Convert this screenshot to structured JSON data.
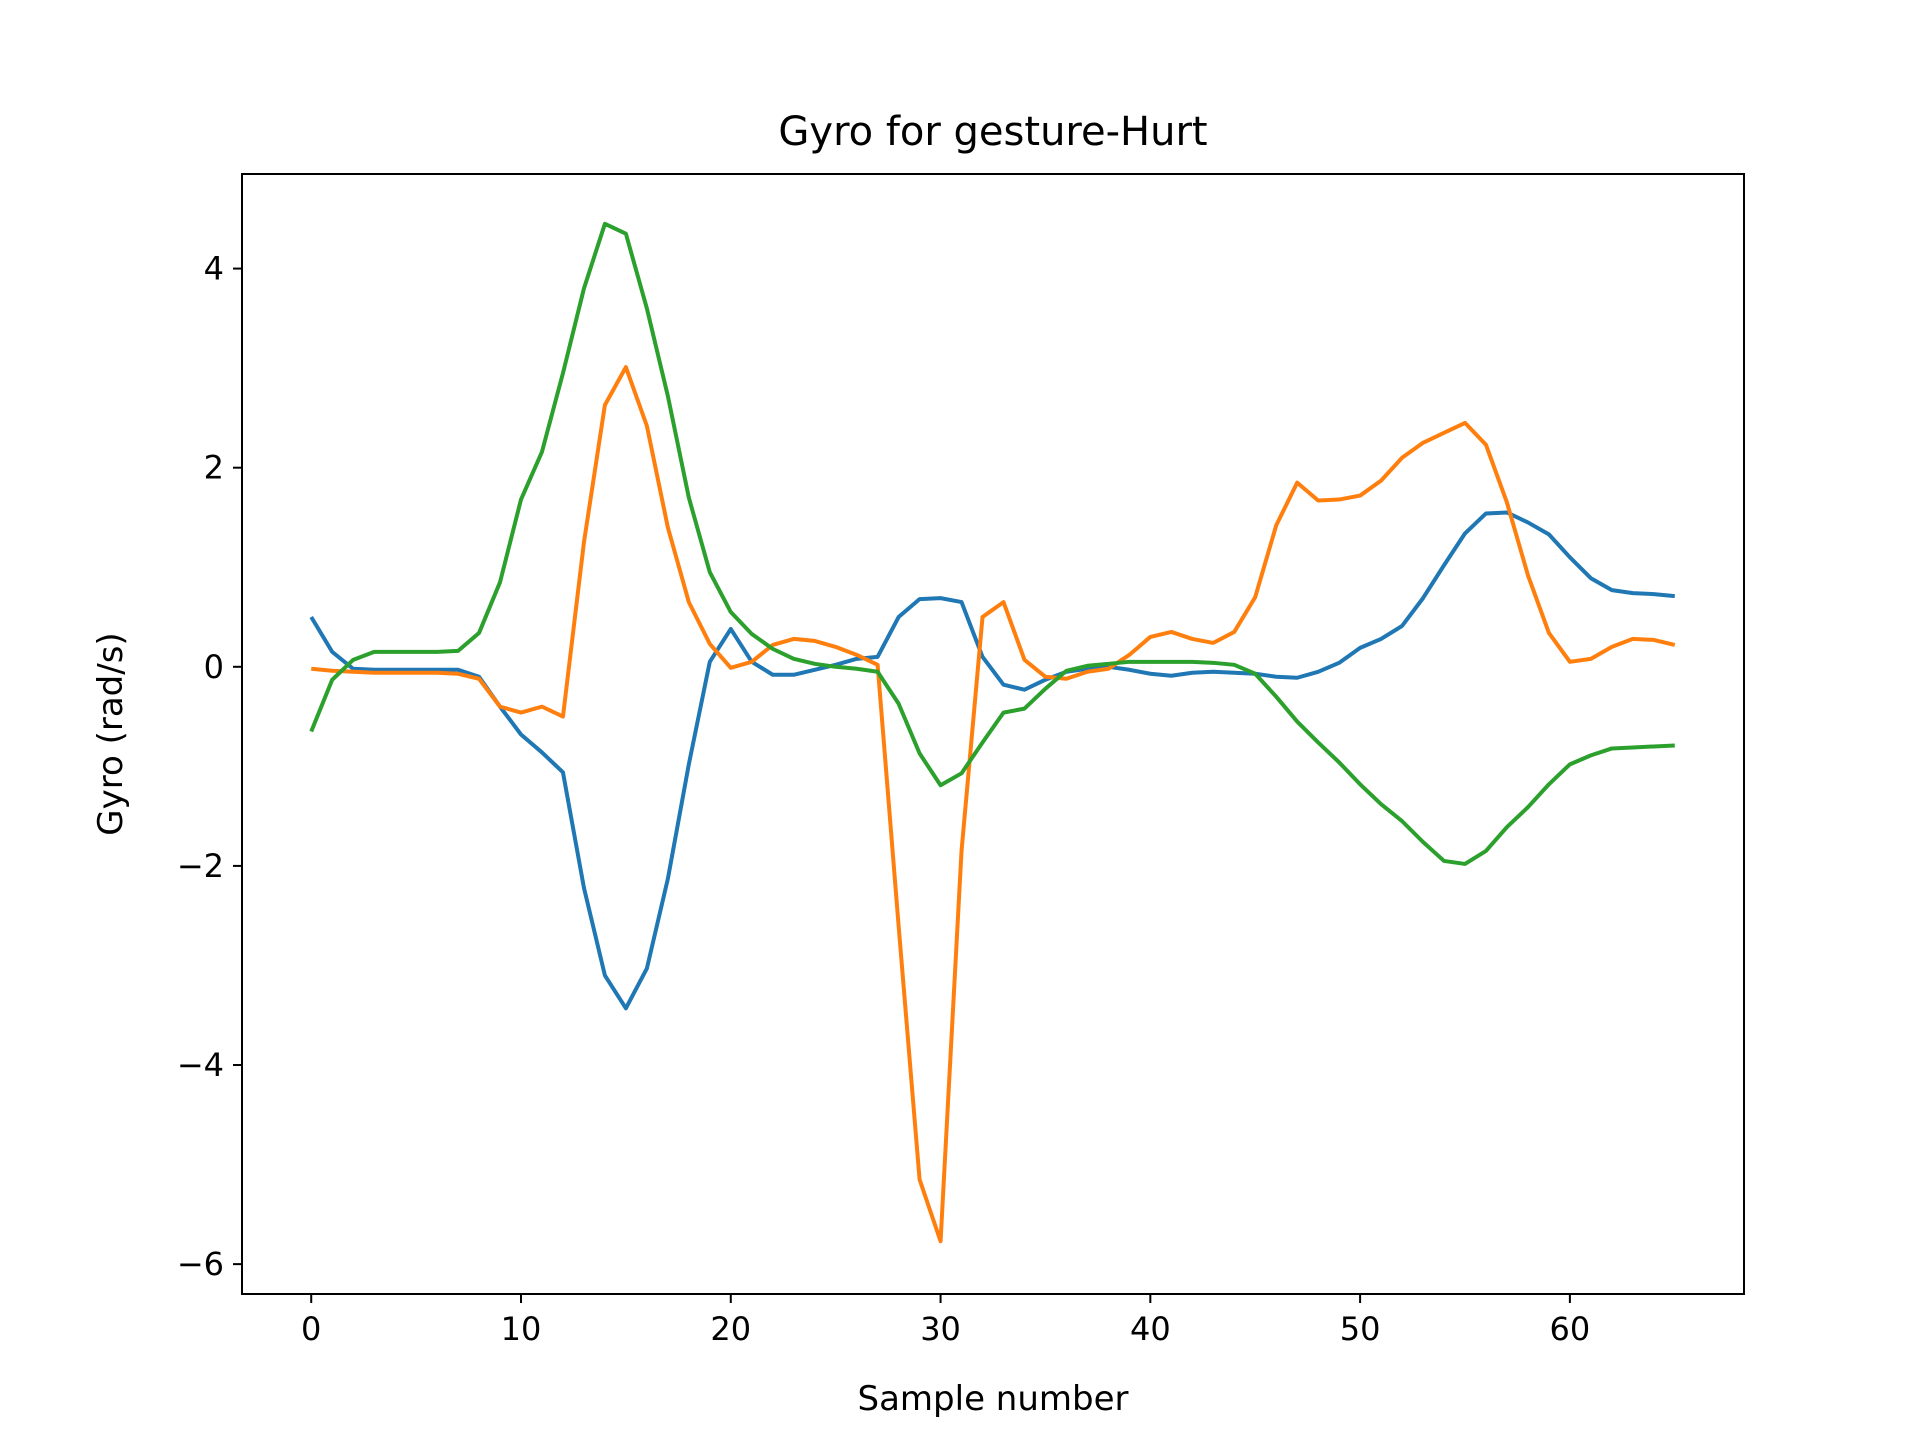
{
  "chart_data": {
    "type": "line",
    "title": "Gyro for gesture-Hurt",
    "xlabel": "Sample number",
    "ylabel": "Gyro  (rad/s)",
    "xlim": [
      -3.3,
      68.3
    ],
    "ylim": [
      -6.3,
      4.95
    ],
    "xticks": [
      0,
      10,
      20,
      30,
      40,
      50,
      60
    ],
    "xtick_labels": [
      "0",
      "10",
      "20",
      "30",
      "40",
      "50",
      "60"
    ],
    "yticks": [
      -6,
      -4,
      -2,
      0,
      2,
      4
    ],
    "ytick_labels": [
      "−6",
      "−4",
      "−2",
      "0",
      "2",
      "4"
    ],
    "grid": false,
    "legend": "none",
    "x": [
      0,
      1,
      2,
      3,
      4,
      5,
      6,
      7,
      8,
      9,
      10,
      11,
      12,
      13,
      14,
      15,
      16,
      17,
      18,
      19,
      20,
      21,
      22,
      23,
      24,
      25,
      26,
      27,
      28,
      29,
      30,
      31,
      32,
      33,
      34,
      35,
      36,
      37,
      38,
      39,
      40,
      41,
      42,
      43,
      44,
      45,
      46,
      47,
      48,
      49,
      50,
      51,
      52,
      53,
      54,
      55,
      56,
      57,
      58,
      59,
      60,
      61,
      62,
      63,
      64,
      65
    ],
    "series": [
      {
        "color": "#1f77b4",
        "values": [
          0.5,
          0.15,
          -0.02,
          -0.03,
          -0.03,
          -0.03,
          -0.03,
          -0.03,
          -0.1,
          -0.4,
          -0.68,
          -0.86,
          -1.06,
          -2.22,
          -3.1,
          -3.43,
          -3.03,
          -2.13,
          -0.98,
          0.05,
          0.38,
          0.05,
          -0.08,
          -0.08,
          -0.03,
          0.02,
          0.08,
          0.1,
          0.5,
          0.68,
          0.69,
          0.65,
          0.1,
          -0.18,
          -0.23,
          -0.13,
          -0.05,
          -0.02,
          0.0,
          -0.03,
          -0.07,
          -0.09,
          -0.06,
          -0.05,
          -0.06,
          -0.07,
          -0.1,
          -0.11,
          -0.05,
          0.04,
          0.19,
          0.28,
          0.41,
          0.69,
          1.02,
          1.34,
          1.54,
          1.55,
          1.45,
          1.33,
          1.1,
          0.89,
          0.77,
          0.74,
          0.73,
          0.71
        ]
      },
      {
        "color": "#ff7f0e",
        "values": [
          -0.02,
          -0.04,
          -0.05,
          -0.06,
          -0.06,
          -0.06,
          -0.06,
          -0.07,
          -0.12,
          -0.4,
          -0.46,
          -0.4,
          -0.5,
          1.25,
          2.63,
          3.01,
          2.42,
          1.4,
          0.65,
          0.23,
          -0.01,
          0.05,
          0.22,
          0.28,
          0.26,
          0.2,
          0.12,
          0.02,
          -2.6,
          -5.15,
          -5.77,
          -1.85,
          0.5,
          0.65,
          0.07,
          -0.1,
          -0.12,
          -0.05,
          -0.02,
          0.12,
          0.3,
          0.35,
          0.28,
          0.24,
          0.35,
          0.7,
          1.42,
          1.85,
          1.67,
          1.68,
          1.72,
          1.87,
          2.1,
          2.25,
          2.35,
          2.45,
          2.23,
          1.65,
          0.92,
          0.34,
          0.05,
          0.08,
          0.2,
          0.28,
          0.27,
          0.22
        ]
      },
      {
        "color": "#2ca02c",
        "values": [
          -0.65,
          -0.13,
          0.07,
          0.15,
          0.15,
          0.15,
          0.15,
          0.16,
          0.34,
          0.85,
          1.68,
          2.16,
          2.95,
          3.8,
          4.45,
          4.35,
          3.6,
          2.72,
          1.7,
          0.95,
          0.55,
          0.33,
          0.18,
          0.08,
          0.03,
          0.0,
          -0.02,
          -0.05,
          -0.37,
          -0.87,
          -1.19,
          -1.07,
          -0.76,
          -0.46,
          -0.42,
          -0.22,
          -0.04,
          0.01,
          0.03,
          0.05,
          0.05,
          0.05,
          0.05,
          0.04,
          0.02,
          -0.07,
          -0.3,
          -0.55,
          -0.76,
          -0.96,
          -1.18,
          -1.38,
          -1.55,
          -1.76,
          -1.95,
          -1.98,
          -1.85,
          -1.61,
          -1.41,
          -1.18,
          -0.98,
          -0.89,
          -0.82,
          -0.81,
          -0.8,
          -0.79
        ]
      }
    ]
  }
}
